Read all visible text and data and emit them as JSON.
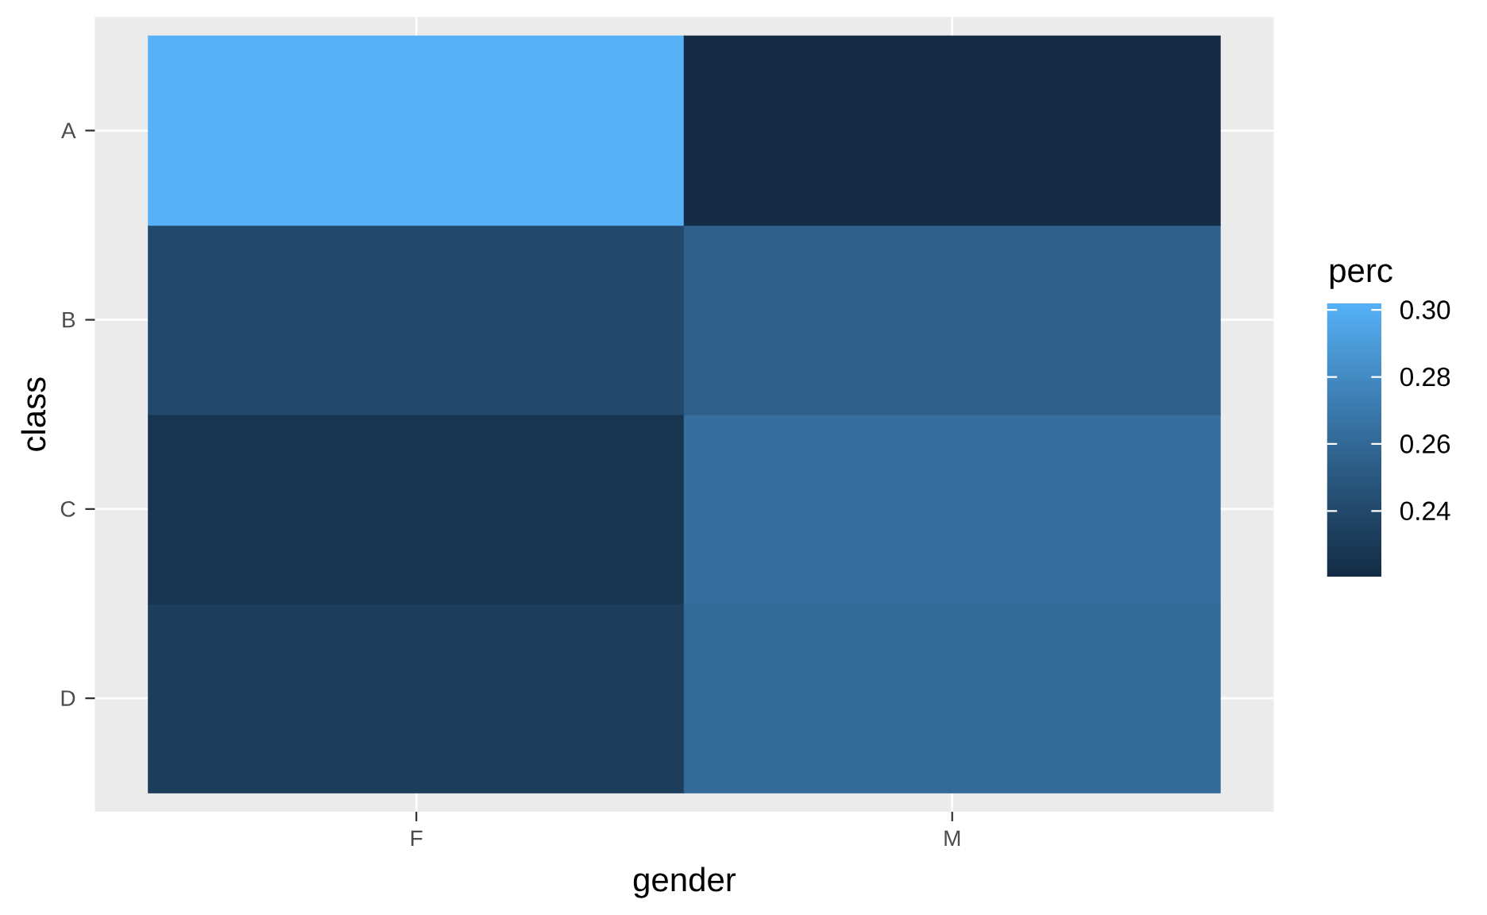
{
  "chart_data": {
    "type": "heatmap",
    "xlabel": "gender",
    "ylabel": "class",
    "clabel": "perc",
    "categories": [
      "F",
      "M"
    ],
    "y_categories": [
      "A",
      "B",
      "C",
      "D"
    ],
    "cells": [
      [
        0.302,
        0.22
      ],
      [
        0.24,
        0.255
      ],
      [
        0.227,
        0.264
      ],
      [
        0.232,
        0.261
      ]
    ],
    "clim": [
      0.22,
      0.302
    ],
    "cticks": [
      0.24,
      0.26,
      0.28,
      {
        "value": 0.3,
        "label": "0.30"
      }
    ],
    "grid": true
  }
}
